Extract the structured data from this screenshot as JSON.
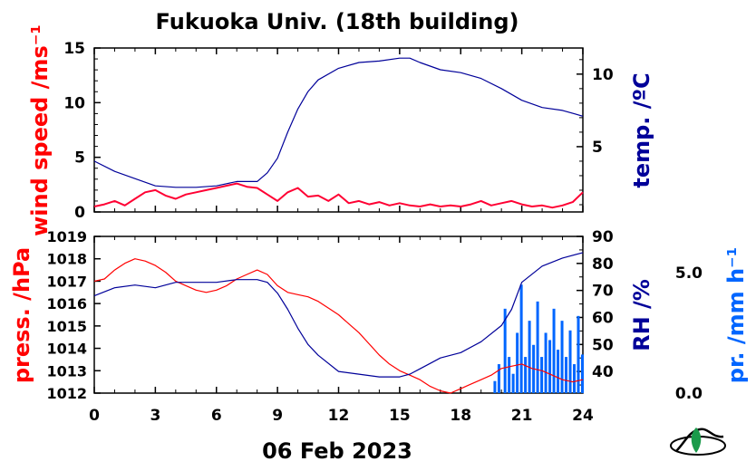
{
  "title": "Fukuoka Univ. (18th building)",
  "date_label": "06 Feb 2023",
  "colors": {
    "wind": "#ff0033",
    "wind_raw": "#cc88cc",
    "temp": "#000099",
    "pressure": "#ff0000",
    "rh": "#000099",
    "precip": "#0066ff",
    "axis": "#000000"
  },
  "chart_data": [
    {
      "type": "line",
      "panel": "top",
      "xlabel": "",
      "xlim": [
        0,
        24
      ],
      "left_axis": {
        "label": "wind speed /ms⁻¹",
        "ylim": [
          0,
          15
        ],
        "ticks": [
          "0",
          "5",
          "10",
          "15"
        ]
      },
      "right_axis": {
        "label": "temp. /ºC",
        "ylim": [
          0.5,
          11.8
        ],
        "ticks": [
          "5",
          "10"
        ]
      },
      "series": [
        {
          "axis": "left",
          "color": "#ff0033",
          "x": [
            0,
            0.5,
            1,
            1.5,
            2,
            2.5,
            3,
            3.5,
            4,
            4.5,
            5,
            5.5,
            6,
            6.5,
            7,
            7.5,
            8,
            8.5,
            9,
            9.5,
            10,
            10.5,
            11,
            11.5,
            12,
            12.5,
            13,
            13.5,
            14,
            14.5,
            15,
            15.5,
            16,
            16.5,
            17,
            17.5,
            18,
            18.5,
            19,
            19.5,
            20,
            20.5,
            21,
            21.5,
            22,
            22.5,
            23,
            23.5,
            24
          ],
          "values": [
            0.5,
            0.7,
            1.0,
            0.6,
            1.2,
            1.8,
            2.0,
            1.5,
            1.2,
            1.6,
            1.8,
            2.0,
            2.2,
            2.4,
            2.6,
            2.3,
            2.2,
            1.6,
            1.0,
            1.8,
            2.2,
            1.4,
            1.5,
            1.0,
            1.6,
            0.8,
            1.0,
            0.7,
            0.9,
            0.6,
            0.8,
            0.6,
            0.5,
            0.7,
            0.5,
            0.6,
            0.5,
            0.7,
            1.0,
            0.6,
            0.8,
            1.0,
            0.7,
            0.5,
            0.6,
            0.4,
            0.6,
            0.9,
            1.8
          ]
        },
        {
          "axis": "right",
          "color": "#000099",
          "x": [
            0,
            1,
            2,
            3,
            4,
            5,
            6,
            7,
            8,
            8.5,
            9,
            9.5,
            10,
            10.5,
            11,
            12,
            13,
            14,
            15,
            15.5,
            16,
            17,
            18,
            19,
            20,
            21,
            22,
            23,
            24
          ],
          "values": [
            4.0,
            3.3,
            2.8,
            2.3,
            2.2,
            2.2,
            2.3,
            2.6,
            2.6,
            3.2,
            4.2,
            6.0,
            7.6,
            8.8,
            9.6,
            10.4,
            10.8,
            10.9,
            11.1,
            11.1,
            10.8,
            10.3,
            10.1,
            9.7,
            9.0,
            8.2,
            7.7,
            7.5,
            7.1
          ]
        }
      ]
    },
    {
      "type": "line",
      "panel": "bottom",
      "xlabel": "",
      "xlim": [
        0,
        24
      ],
      "xticks": [
        "0",
        "3",
        "6",
        "9",
        "12",
        "15",
        "18",
        "21",
        "24"
      ],
      "left_axis": {
        "label": "press. /hPa",
        "ylim": [
          1012,
          1019
        ],
        "ticks": [
          "1012",
          "1013",
          "1014",
          "1015",
          "1016",
          "1017",
          "1018",
          "1019"
        ]
      },
      "right_axis": {
        "label": "RH /%",
        "ylim": [
          32,
          90
        ],
        "ticks": [
          "40",
          "50",
          "60",
          "70",
          "80",
          "90"
        ]
      },
      "far_axis": {
        "label": "pr. /mm h⁻¹",
        "ylim": [
          0,
          6.5
        ],
        "ticks": [
          "0.0",
          "5.0"
        ]
      },
      "series": [
        {
          "axis": "left",
          "color": "#ff0000",
          "x": [
            0,
            0.5,
            1,
            1.5,
            2,
            2.5,
            3,
            3.5,
            4,
            4.5,
            5,
            5.5,
            6,
            6.5,
            7,
            7.5,
            8,
            8.5,
            9,
            9.5,
            10,
            10.5,
            11,
            11.5,
            12,
            12.5,
            13,
            13.5,
            14,
            14.5,
            15,
            15.5,
            16,
            16.5,
            17,
            17.5,
            18,
            18.5,
            19,
            19.5,
            20,
            20.5,
            21,
            21.5,
            22,
            22.5,
            23,
            23.5,
            24
          ],
          "values": [
            1017.0,
            1017.1,
            1017.5,
            1017.8,
            1018.0,
            1017.9,
            1017.7,
            1017.4,
            1017.0,
            1016.8,
            1016.6,
            1016.5,
            1016.6,
            1016.8,
            1017.1,
            1017.3,
            1017.5,
            1017.3,
            1016.8,
            1016.5,
            1016.4,
            1016.3,
            1016.1,
            1015.8,
            1015.5,
            1015.1,
            1014.7,
            1014.2,
            1013.7,
            1013.3,
            1013.0,
            1012.8,
            1012.6,
            1012.3,
            1012.1,
            1012.0,
            1012.2,
            1012.4,
            1012.6,
            1012.8,
            1013.1,
            1013.2,
            1013.3,
            1013.1,
            1013.0,
            1012.8,
            1012.6,
            1012.5,
            1012.6
          ]
        },
        {
          "axis": "right",
          "color": "#000099",
          "x": [
            0,
            1,
            2,
            3,
            4,
            5,
            6,
            7,
            8,
            8.5,
            9,
            9.5,
            10,
            10.5,
            11,
            12,
            13,
            14,
            15,
            15.5,
            16,
            16.5,
            17,
            18,
            19,
            20,
            20.5,
            21,
            22,
            23,
            24
          ],
          "values": [
            68,
            71,
            72,
            71,
            73,
            73,
            73,
            74,
            74,
            73,
            69,
            63,
            56,
            50,
            46,
            40,
            39,
            38,
            38,
            39,
            41,
            43,
            45,
            47,
            51,
            57,
            63,
            73,
            79,
            82,
            84
          ]
        }
      ],
      "bars": {
        "axis": "far",
        "color": "#0066ff",
        "x": [
          19.7,
          19.9,
          20.2,
          20.4,
          20.6,
          20.8,
          21.0,
          21.2,
          21.4,
          21.6,
          21.8,
          22.0,
          22.2,
          22.4,
          22.6,
          22.8,
          23.0,
          23.2,
          23.4,
          23.6,
          23.8,
          24.0
        ],
        "values": [
          0.5,
          1.2,
          3.5,
          1.5,
          0.8,
          2.5,
          4.5,
          1.5,
          3.0,
          2.0,
          3.8,
          1.5,
          2.5,
          2.2,
          3.5,
          1.8,
          3.0,
          1.5,
          2.6,
          1.2,
          3.2,
          1.6
        ]
      }
    }
  ]
}
